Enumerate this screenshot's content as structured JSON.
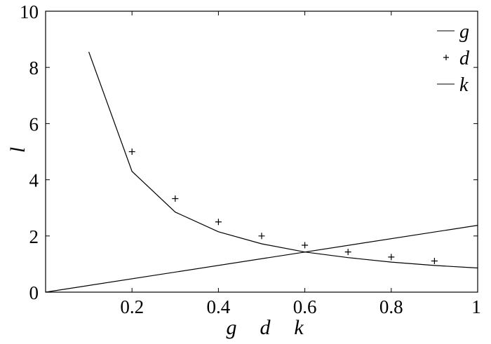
{
  "chart_data": {
    "type": "line",
    "title": "",
    "xlabel": [
      "g",
      "d",
      "k"
    ],
    "ylabel": "l",
    "xlim": [
      0,
      1
    ],
    "ylim": [
      0,
      10
    ],
    "xticks": [
      0.2,
      0.4,
      0.6,
      0.8,
      1
    ],
    "xtick_labels": [
      "0.2",
      "0.4",
      "0.6",
      "0.8",
      "1"
    ],
    "yticks": [
      0,
      2,
      4,
      6,
      8,
      10
    ],
    "ytick_labels": [
      "0",
      "2",
      "4",
      "6",
      "8",
      "10"
    ],
    "grid": false,
    "legend_position": "top-right",
    "series": [
      {
        "name": "g",
        "style": "line",
        "x": [
          0.1,
          0.2,
          0.3,
          0.4,
          0.5,
          0.6,
          0.7,
          0.8,
          0.9,
          1.0
        ],
        "y": [
          8.55,
          4.3,
          2.85,
          2.15,
          1.72,
          1.43,
          1.23,
          1.07,
          0.95,
          0.86
        ]
      },
      {
        "name": "d",
        "style": "markers",
        "marker": "+",
        "x": [
          0.2,
          0.3,
          0.4,
          0.5,
          0.6,
          0.7,
          0.8,
          0.9
        ],
        "y": [
          5.0,
          3.33,
          2.5,
          2.0,
          1.67,
          1.43,
          1.25,
          1.11
        ]
      },
      {
        "name": "k",
        "style": "line",
        "x": [
          0,
          1
        ],
        "y": [
          0,
          2.38
        ]
      }
    ],
    "colors": {
      "line": "#000000",
      "axis": "#000000",
      "background": "#ffffff"
    }
  }
}
